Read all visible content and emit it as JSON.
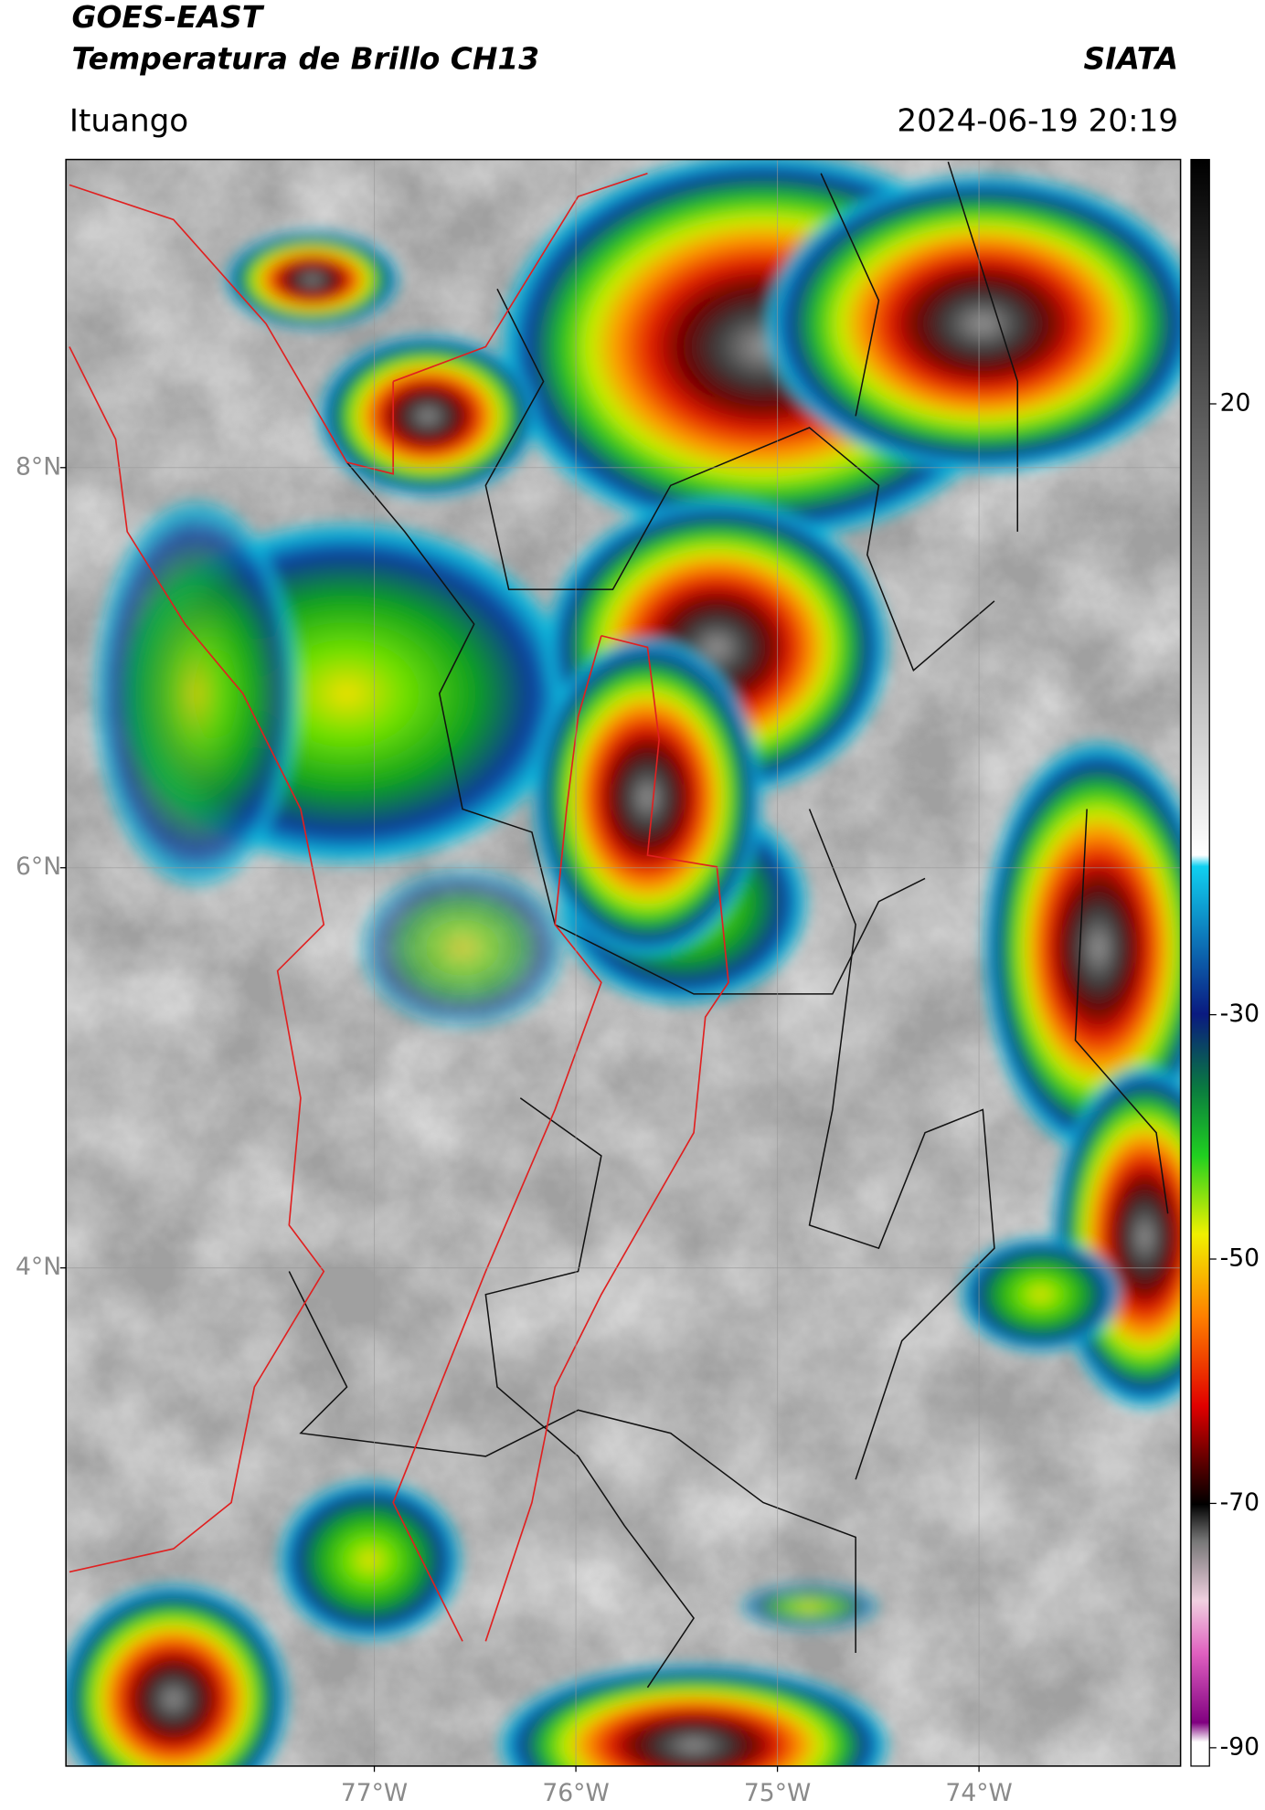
{
  "header": {
    "satellite": "GOES-EAST",
    "product": "Temperatura de Brillo CH13",
    "organization": "SIATA",
    "location": "Ituango",
    "datetime": "2024-06-19 20:19"
  },
  "map": {
    "xlim": [
      -78.53,
      -73.0
    ],
    "ylim": [
      1.51,
      9.54
    ],
    "xticks": [
      {
        "value": -77,
        "label": "77°W"
      },
      {
        "value": -76,
        "label": "76°W"
      },
      {
        "value": -75,
        "label": "75°W"
      },
      {
        "value": -74,
        "label": "74°W"
      }
    ],
    "yticks": [
      {
        "value": 8,
        "label": "8°N"
      },
      {
        "value": 6,
        "label": "6°N"
      },
      {
        "value": 4,
        "label": "4°N"
      }
    ],
    "grid": true
  },
  "colorbar": {
    "lim": [
      -91.5,
      40
    ],
    "ticks": [
      20,
      -30,
      -50,
      -70,
      -90
    ]
  }
}
